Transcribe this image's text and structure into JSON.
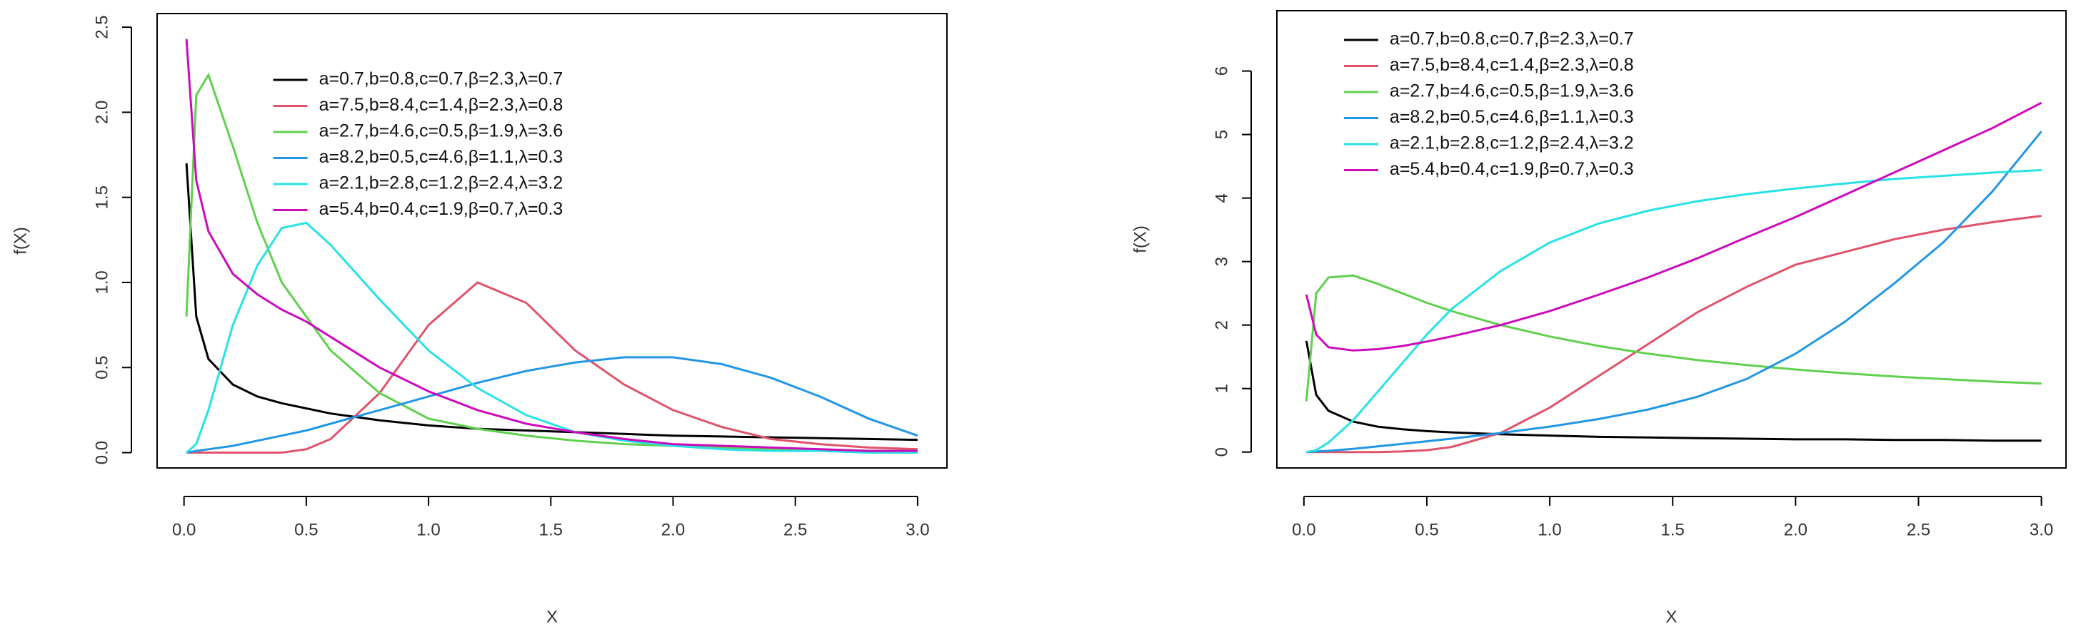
{
  "chart_data": [
    {
      "type": "line",
      "x_label": "X",
      "y_label": "f(X)",
      "x": [
        0.01,
        0.05,
        0.1,
        0.2,
        0.3,
        0.4,
        0.5,
        0.6,
        0.8,
        1.0,
        1.2,
        1.4,
        1.6,
        1.8,
        2.0,
        2.2,
        2.4,
        2.6,
        2.8,
        3.0
      ],
      "xlim": [
        -0.11,
        3.12
      ],
      "ylim": [
        -0.09,
        2.58
      ],
      "xticks": [
        {
          "value": 0,
          "label": "0.0"
        },
        0.5,
        {
          "value": 1,
          "label": "1.0"
        },
        1.5,
        {
          "value": 2,
          "label": "2.0"
        },
        2.5,
        {
          "value": 3,
          "label": "3.0"
        }
      ],
      "yticks": [
        {
          "value": 0,
          "label": "0.0"
        },
        0.5,
        {
          "value": 1,
          "label": "1.0"
        },
        1.5,
        {
          "value": 2,
          "label": "2.0"
        },
        2.5
      ],
      "legend": "top",
      "series": [
        {
          "name": "a=0.7,b=0.8,c=0.7,β=2.3,λ=0.7",
          "color": "#000000",
          "values": [
            1.7,
            0.8,
            0.55,
            0.4,
            0.33,
            0.29,
            0.26,
            0.23,
            0.19,
            0.16,
            0.14,
            0.13,
            0.12,
            0.11,
            0.1,
            0.095,
            0.09,
            0.085,
            0.08,
            0.075
          ]
        },
        {
          "name": "a=7.5,b=8.4,c=1.4,β=2.3,λ=0.8",
          "color": "#DF536B",
          "values": [
            0,
            0,
            0,
            0,
            0,
            0,
            0.02,
            0.08,
            0.35,
            0.75,
            1.0,
            0.88,
            0.6,
            0.4,
            0.25,
            0.15,
            0.08,
            0.05,
            0.03,
            0.02
          ]
        },
        {
          "name": "a=2.7,b=4.6,c=0.5,β=1.9,λ=3.6",
          "color": "#61D04F",
          "values": [
            0.8,
            2.1,
            2.22,
            1.8,
            1.35,
            1.0,
            0.8,
            0.6,
            0.35,
            0.2,
            0.14,
            0.1,
            0.07,
            0.05,
            0.04,
            0.03,
            0.02,
            0.02,
            0.01,
            0.01
          ]
        },
        {
          "name": "a=8.2,b=0.5,c=4.6,β=1.1,λ=0.3",
          "color": "#2297E6",
          "values": [
            0,
            0.01,
            0.02,
            0.04,
            0.07,
            0.1,
            0.13,
            0.17,
            0.25,
            0.33,
            0.41,
            0.48,
            0.53,
            0.56,
            0.56,
            0.52,
            0.44,
            0.33,
            0.2,
            0.1
          ]
        },
        {
          "name": "a=2.1,b=2.8,c=1.2,β=2.4,λ=3.2",
          "color": "#28E2E5",
          "values": [
            0,
            0.05,
            0.25,
            0.75,
            1.1,
            1.32,
            1.35,
            1.22,
            0.9,
            0.6,
            0.38,
            0.22,
            0.12,
            0.07,
            0.04,
            0.02,
            0.01,
            0.01,
            0,
            0
          ]
        },
        {
          "name": "a=5.4,b=0.4,c=1.9,β=0.7,λ=0.3",
          "color": "#CD0BBC",
          "values": [
            2.43,
            1.6,
            1.3,
            1.05,
            0.93,
            0.84,
            0.77,
            0.68,
            0.5,
            0.36,
            0.25,
            0.17,
            0.12,
            0.08,
            0.05,
            0.04,
            0.03,
            0.02,
            0.01,
            0.01
          ]
        }
      ]
    },
    {
      "type": "line",
      "x_label": "X",
      "y_label": "f(X)",
      "x": [
        0.01,
        0.05,
        0.1,
        0.2,
        0.3,
        0.4,
        0.5,
        0.6,
        0.8,
        1.0,
        1.2,
        1.4,
        1.6,
        1.8,
        2.0,
        2.2,
        2.4,
        2.6,
        2.8,
        3.0
      ],
      "xlim": [
        -0.11,
        3.1
      ],
      "ylim": [
        -0.25,
        6.95
      ],
      "xticks": [
        {
          "value": 0,
          "label": "0.0"
        },
        0.5,
        {
          "value": 1,
          "label": "1.0"
        },
        1.5,
        {
          "value": 2,
          "label": "2.0"
        },
        2.5,
        {
          "value": 3,
          "label": "3.0"
        }
      ],
      "yticks": [
        0,
        1,
        2,
        3,
        4,
        5,
        6
      ],
      "legend": "top-left",
      "series": [
        {
          "name": "a=0.7,b=0.8,c=0.7,β=2.3,λ=0.7",
          "color": "#000000",
          "values": [
            1.75,
            0.9,
            0.65,
            0.48,
            0.4,
            0.36,
            0.33,
            0.31,
            0.28,
            0.26,
            0.24,
            0.23,
            0.22,
            0.21,
            0.2,
            0.2,
            0.19,
            0.19,
            0.18,
            0.18
          ]
        },
        {
          "name": "a=7.5,b=8.4,c=1.4,β=2.3,λ=0.8",
          "color": "#DF536B",
          "values": [
            0,
            0,
            0,
            0,
            0,
            0.01,
            0.03,
            0.08,
            0.3,
            0.7,
            1.2,
            1.7,
            2.2,
            2.6,
            2.95,
            3.15,
            3.35,
            3.5,
            3.62,
            3.72
          ]
        },
        {
          "name": "a=2.7,b=4.6,c=0.5,β=1.9,λ=3.6",
          "color": "#61D04F",
          "values": [
            0.8,
            2.5,
            2.75,
            2.78,
            2.65,
            2.5,
            2.35,
            2.22,
            2.0,
            1.82,
            1.67,
            1.55,
            1.45,
            1.37,
            1.3,
            1.24,
            1.19,
            1.15,
            1.11,
            1.08
          ]
        },
        {
          "name": "a=8.2,b=0.5,c=4.6,β=1.1,λ=0.3",
          "color": "#2297E6",
          "values": [
            0,
            0.01,
            0.02,
            0.05,
            0.09,
            0.13,
            0.17,
            0.21,
            0.3,
            0.4,
            0.52,
            0.67,
            0.87,
            1.15,
            1.55,
            2.05,
            2.65,
            3.3,
            4.1,
            5.05
          ]
        },
        {
          "name": "a=2.1,b=2.8,c=1.2,β=2.4,λ=3.2",
          "color": "#28E2E5",
          "values": [
            0,
            0.03,
            0.15,
            0.5,
            0.95,
            1.4,
            1.85,
            2.25,
            2.85,
            3.3,
            3.6,
            3.8,
            3.95,
            4.06,
            4.15,
            4.23,
            4.3,
            4.35,
            4.4,
            4.44
          ]
        },
        {
          "name": "a=5.4,b=0.4,c=1.9,β=0.7,λ=0.3",
          "color": "#CD0BBC",
          "values": [
            2.48,
            1.85,
            1.65,
            1.6,
            1.62,
            1.67,
            1.74,
            1.82,
            2.0,
            2.22,
            2.48,
            2.75,
            3.05,
            3.38,
            3.7,
            4.05,
            4.4,
            4.75,
            5.1,
            5.5
          ]
        }
      ]
    }
  ]
}
